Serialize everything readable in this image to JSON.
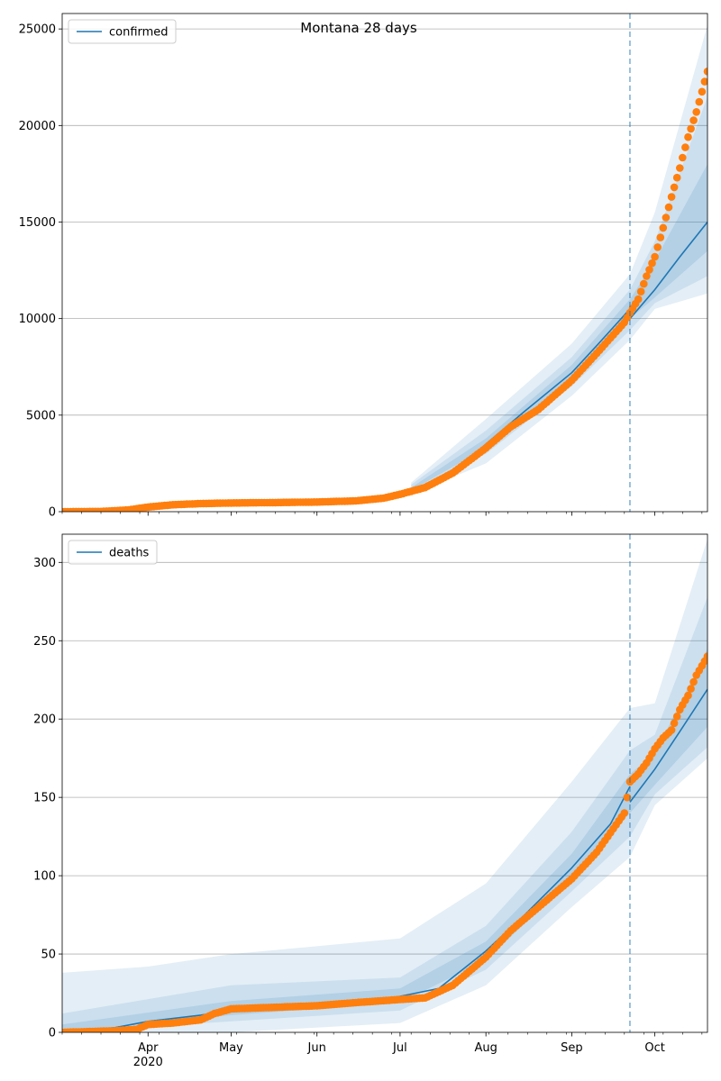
{
  "title": "Montana 28 days",
  "colors": {
    "model_line": "#1f77b4",
    "observed": "#ff7f0e",
    "band": "#1f77b4",
    "grid": "#b0b0b0",
    "divider": "#1f77b4"
  },
  "x_axis": {
    "start": "2020-03-01",
    "end": "2020-10-20",
    "months": [
      {
        "label": "Apr",
        "date": "2020-04-01"
      },
      {
        "label": "May",
        "date": "2020-05-01"
      },
      {
        "label": "Jun",
        "date": "2020-06-01"
      },
      {
        "label": "Jul",
        "date": "2020-07-01"
      },
      {
        "label": "Aug",
        "date": "2020-08-01"
      },
      {
        "label": "Sep",
        "date": "2020-09-01"
      },
      {
        "label": "Oct",
        "date": "2020-10-01"
      }
    ],
    "year_label": "2020",
    "forecast_start": "2020-09-22"
  },
  "chart_data": [
    {
      "type": "line",
      "legend": "confirmed",
      "legend_position": "top-left",
      "grid": true,
      "ylim": [
        0,
        25800
      ],
      "yticks": [
        0,
        5000,
        10000,
        15000,
        20000,
        25000
      ],
      "model": [
        [
          "2020-03-01",
          0
        ],
        [
          "2020-03-20",
          30
        ],
        [
          "2020-04-01",
          250
        ],
        [
          "2020-04-15",
          380
        ],
        [
          "2020-05-01",
          430
        ],
        [
          "2020-06-01",
          480
        ],
        [
          "2020-06-20",
          560
        ],
        [
          "2020-07-01",
          950
        ],
        [
          "2020-07-10",
          1300
        ],
        [
          "2020-07-20",
          2000
        ],
        [
          "2020-08-01",
          3500
        ],
        [
          "2020-08-15",
          5200
        ],
        [
          "2020-09-01",
          7200
        ],
        [
          "2020-09-10",
          8600
        ],
        [
          "2020-09-22",
          10500
        ]
      ],
      "forecast": [
        [
          "2020-09-22",
          10000
        ],
        [
          "2020-10-01",
          11500
        ],
        [
          "2020-10-10",
          13200
        ],
        [
          "2020-10-20",
          15000
        ]
      ],
      "bands": [
        {
          "lo": [
            [
              "2020-07-05",
              900
            ],
            [
              "2020-08-01",
              2500
            ],
            [
              "2020-09-01",
              6000
            ],
            [
              "2020-09-22",
              8900
            ],
            [
              "2020-10-01",
              10500
            ],
            [
              "2020-10-20",
              11300
            ]
          ],
          "hi": [
            [
              "2020-07-05",
              1500
            ],
            [
              "2020-08-01",
              4800
            ],
            [
              "2020-09-01",
              8700
            ],
            [
              "2020-09-22",
              12300
            ],
            [
              "2020-10-01",
              15500
            ],
            [
              "2020-10-20",
              25200
            ]
          ]
        },
        {
          "lo": [
            [
              "2020-07-05",
              1000
            ],
            [
              "2020-08-01",
              3000
            ],
            [
              "2020-09-01",
              6500
            ],
            [
              "2020-09-22",
              9400
            ],
            [
              "2020-10-01",
              10800
            ],
            [
              "2020-10-20",
              12200
            ]
          ],
          "hi": [
            [
              "2020-07-05",
              1400
            ],
            [
              "2020-08-01",
              4200
            ],
            [
              "2020-09-01",
              8000
            ],
            [
              "2020-09-22",
              11500
            ],
            [
              "2020-10-01",
              14000
            ],
            [
              "2020-10-20",
              21500
            ]
          ]
        },
        {
          "lo": [
            [
              "2020-07-05",
              1100
            ],
            [
              "2020-08-01",
              3300
            ],
            [
              "2020-09-01",
              6900
            ],
            [
              "2020-09-22",
              10000
            ],
            [
              "2020-10-01",
              11100
            ],
            [
              "2020-10-20",
              13500
            ]
          ],
          "hi": [
            [
              "2020-07-05",
              1250
            ],
            [
              "2020-08-01",
              3800
            ],
            [
              "2020-09-01",
              7600
            ],
            [
              "2020-09-22",
              11000
            ],
            [
              "2020-10-01",
              13000
            ],
            [
              "2020-10-20",
              18000
            ]
          ]
        }
      ],
      "observed": [
        [
          "2020-03-01",
          0
        ],
        [
          "2020-03-15",
          10
        ],
        [
          "2020-03-25",
          90
        ],
        [
          "2020-04-01",
          240
        ],
        [
          "2020-04-10",
          360
        ],
        [
          "2020-04-20",
          420
        ],
        [
          "2020-05-01",
          450
        ],
        [
          "2020-05-15",
          470
        ],
        [
          "2020-06-01",
          500
        ],
        [
          "2020-06-15",
          560
        ],
        [
          "2020-06-25",
          700
        ],
        [
          "2020-07-01",
          900
        ],
        [
          "2020-07-10",
          1250
        ],
        [
          "2020-07-20",
          2000
        ],
        [
          "2020-08-01",
          3300
        ],
        [
          "2020-08-10",
          4400
        ],
        [
          "2020-08-20",
          5300
        ],
        [
          "2020-09-01",
          6800
        ],
        [
          "2020-09-10",
          8200
        ],
        [
          "2020-09-20",
          9800
        ],
        [
          "2020-09-22",
          10300
        ],
        [
          "2020-09-25",
          11000
        ],
        [
          "2020-09-28",
          12200
        ],
        [
          "2020-10-01",
          13200
        ],
        [
          "2020-10-04",
          14700
        ],
        [
          "2020-10-07",
          16300
        ],
        [
          "2020-10-10",
          17800
        ],
        [
          "2020-10-13",
          19400
        ],
        [
          "2020-10-16",
          20700
        ],
        [
          "2020-10-20",
          22800
        ]
      ]
    },
    {
      "type": "line",
      "legend": "deaths",
      "legend_position": "top-left",
      "grid": true,
      "ylim": [
        0,
        318
      ],
      "yticks": [
        0,
        50,
        100,
        150,
        200,
        250,
        300
      ],
      "model": [
        [
          "2020-03-01",
          0
        ],
        [
          "2020-03-20",
          3
        ],
        [
          "2020-04-01",
          7
        ],
        [
          "2020-04-20",
          11
        ],
        [
          "2020-05-01",
          14
        ],
        [
          "2020-05-20",
          16
        ],
        [
          "2020-06-01",
          18
        ],
        [
          "2020-06-20",
          20
        ],
        [
          "2020-07-01",
          23
        ],
        [
          "2020-07-15",
          28
        ],
        [
          "2020-08-01",
          52
        ],
        [
          "2020-08-15",
          75
        ],
        [
          "2020-09-01",
          105
        ],
        [
          "2020-09-15",
          133
        ],
        [
          "2020-09-22",
          157
        ]
      ],
      "forecast": [
        [
          "2020-09-22",
          147
        ],
        [
          "2020-10-01",
          168
        ],
        [
          "2020-10-10",
          192
        ],
        [
          "2020-10-20",
          219
        ]
      ],
      "bands": [
        {
          "lo": [
            [
              "2020-03-01",
              0
            ],
            [
              "2020-05-01",
              0
            ],
            [
              "2020-07-01",
              6
            ],
            [
              "2020-08-01",
              30
            ],
            [
              "2020-09-01",
              80
            ],
            [
              "2020-09-22",
              112
            ],
            [
              "2020-10-01",
              145
            ],
            [
              "2020-10-20",
              175
            ]
          ],
          "hi": [
            [
              "2020-03-01",
              38
            ],
            [
              "2020-04-01",
              42
            ],
            [
              "2020-05-01",
              50
            ],
            [
              "2020-06-01",
              55
            ],
            [
              "2020-07-01",
              60
            ],
            [
              "2020-08-01",
              95
            ],
            [
              "2020-09-01",
              160
            ],
            [
              "2020-09-22",
              207
            ],
            [
              "2020-10-01",
              210
            ],
            [
              "2020-10-20",
              315
            ]
          ]
        },
        {
          "lo": [
            [
              "2020-03-01",
              0
            ],
            [
              "2020-05-01",
              7
            ],
            [
              "2020-07-01",
              14
            ],
            [
              "2020-08-01",
              40
            ],
            [
              "2020-09-01",
              90
            ],
            [
              "2020-09-22",
              125
            ],
            [
              "2020-10-01",
              152
            ],
            [
              "2020-10-20",
              182
            ]
          ],
          "hi": [
            [
              "2020-03-01",
              12
            ],
            [
              "2020-05-01",
              30
            ],
            [
              "2020-07-01",
              35
            ],
            [
              "2020-08-01",
              68
            ],
            [
              "2020-09-01",
              128
            ],
            [
              "2020-09-22",
              180
            ],
            [
              "2020-10-01",
              190
            ],
            [
              "2020-10-20",
              278
            ]
          ]
        },
        {
          "lo": [
            [
              "2020-03-01",
              0
            ],
            [
              "2020-05-01",
              11
            ],
            [
              "2020-07-01",
              19
            ],
            [
              "2020-08-01",
              46
            ],
            [
              "2020-09-01",
              98
            ],
            [
              "2020-09-22",
              140
            ],
            [
              "2020-10-01",
              158
            ],
            [
              "2020-10-20",
              195
            ]
          ],
          "hi": [
            [
              "2020-03-01",
              5
            ],
            [
              "2020-05-01",
              20
            ],
            [
              "2020-07-01",
              28
            ],
            [
              "2020-08-01",
              58
            ],
            [
              "2020-09-01",
              114
            ],
            [
              "2020-09-22",
              165
            ],
            [
              "2020-10-01",
              178
            ],
            [
              "2020-10-20",
              245
            ]
          ]
        }
      ],
      "observed": [
        [
          "2020-03-01",
          0
        ],
        [
          "2020-03-20",
          1
        ],
        [
          "2020-03-28",
          2
        ],
        [
          "2020-04-01",
          5
        ],
        [
          "2020-04-10",
          6
        ],
        [
          "2020-04-20",
          8
        ],
        [
          "2020-04-25",
          12
        ],
        [
          "2020-05-01",
          15
        ],
        [
          "2020-06-01",
          17
        ],
        [
          "2020-06-15",
          19
        ],
        [
          "2020-07-01",
          21
        ],
        [
          "2020-07-10",
          22
        ],
        [
          "2020-07-20",
          30
        ],
        [
          "2020-08-01",
          48
        ],
        [
          "2020-08-10",
          65
        ],
        [
          "2020-08-20",
          80
        ],
        [
          "2020-09-01",
          98
        ],
        [
          "2020-09-10",
          115
        ],
        [
          "2020-09-20",
          140
        ],
        [
          "2020-09-22",
          160
        ],
        [
          "2020-09-25",
          165
        ],
        [
          "2020-09-28",
          172
        ],
        [
          "2020-10-01",
          181
        ],
        [
          "2020-10-04",
          188
        ],
        [
          "2020-10-07",
          193
        ],
        [
          "2020-10-10",
          206
        ],
        [
          "2020-10-13",
          215
        ],
        [
          "2020-10-16",
          228
        ],
        [
          "2020-10-20",
          240
        ]
      ]
    }
  ]
}
